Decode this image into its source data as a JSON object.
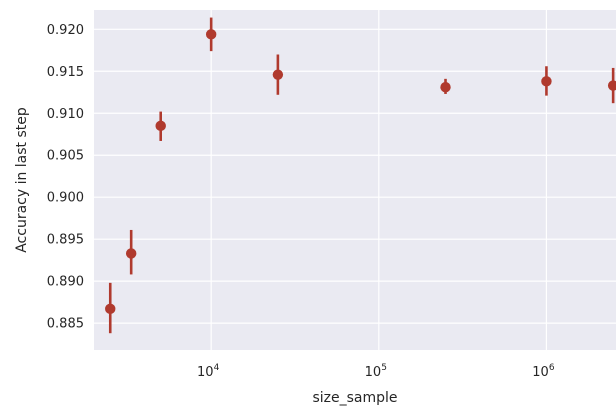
{
  "chart_data": {
    "type": "scatter",
    "title": "",
    "xlabel": "size_sample",
    "ylabel": "Accuracy in last step",
    "x_scale": "log",
    "xlim": [
      2000,
      2600000
    ],
    "ylim": [
      0.8818,
      0.9223
    ],
    "grid": true,
    "legend": "none",
    "yticks": [
      "0.885",
      "0.890",
      "0.895",
      "0.900",
      "0.905",
      "0.910",
      "0.915",
      "0.920"
    ],
    "xticks": [
      {
        "value": 10000,
        "base": "10",
        "exp": "4"
      },
      {
        "value": 100000,
        "base": "10",
        "exp": "5"
      },
      {
        "value": 1000000,
        "base": "10",
        "exp": "6"
      }
    ],
    "series": [
      {
        "color": "#b03a2e",
        "points": [
          {
            "x": 2500,
            "y": 0.8867,
            "low": 0.8838,
            "high": 0.8898
          },
          {
            "x": 3333,
            "y": 0.8933,
            "low": 0.8908,
            "high": 0.8961
          },
          {
            "x": 5000,
            "y": 0.9085,
            "low": 0.9067,
            "high": 0.9102
          },
          {
            "x": 10000,
            "y": 0.9194,
            "low": 0.9174,
            "high": 0.9214
          },
          {
            "x": 25000,
            "y": 0.9146,
            "low": 0.9122,
            "high": 0.917
          },
          {
            "x": 250000,
            "y": 0.9131,
            "low": 0.9123,
            "high": 0.9141
          },
          {
            "x": 1000000,
            "y": 0.9138,
            "low": 0.9121,
            "high": 0.9156
          },
          {
            "x": 2500000,
            "y": 0.9133,
            "low": 0.9112,
            "high": 0.9154
          }
        ]
      }
    ]
  }
}
